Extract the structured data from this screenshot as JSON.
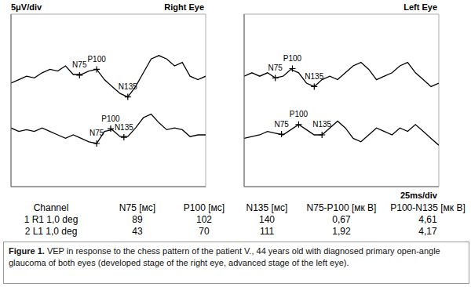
{
  "chart_data": [
    {
      "type": "line",
      "title": "Right Eye",
      "annotation": "5μV/div",
      "x": [
        0,
        10,
        20,
        30,
        40,
        50,
        60,
        70,
        80,
        90,
        100,
        110,
        120,
        130,
        140,
        150,
        160,
        170,
        180,
        190,
        200,
        210,
        220,
        230,
        240,
        250
      ],
      "xlim": [
        0,
        250
      ],
      "xticks": [
        0,
        25,
        50,
        75,
        100,
        125,
        150,
        175,
        200,
        225,
        250
      ],
      "ylim": [
        0,
        50
      ],
      "yticks": [
        0,
        5,
        10,
        15,
        20,
        25,
        30,
        35,
        40,
        45,
        50
      ],
      "grid": true,
      "tick_labels": false,
      "color": "#000000",
      "series": [
        {
          "values": [
            30,
            31,
            32,
            31.5,
            33,
            34,
            33.5,
            35,
            32.5,
            32.5,
            33.5,
            34,
            31,
            29,
            27,
            26,
            29,
            33,
            37,
            38,
            37,
            35,
            36,
            32,
            31,
            32
          ],
          "peaks": [
            {
              "label": "N75",
              "x": 88,
              "y": 32.3
            },
            {
              "label": "P100",
              "x": 110,
              "y": 34
            },
            {
              "label": "N135",
              "x": 150,
              "y": 26
            }
          ]
        },
        {
          "values": [
            17,
            16,
            16.5,
            16,
            17,
            16,
            15,
            14,
            15,
            14,
            13,
            12.5,
            16,
            16.5,
            14.5,
            14.5,
            17,
            20,
            21,
            18.5,
            16.5,
            17,
            16.5,
            14.5,
            15,
            15
          ],
          "peaks": [
            {
              "label": "N75",
              "x": 110,
              "y": 12.5
            },
            {
              "label": "P100",
              "x": 128,
              "y": 16.8
            },
            {
              "label": "N135",
              "x": 145,
              "y": 14.3
            }
          ]
        }
      ]
    },
    {
      "type": "line",
      "title": "Left Eye",
      "annotation": "25ms/div",
      "x": [
        0,
        10,
        20,
        30,
        40,
        50,
        60,
        70,
        80,
        90,
        100,
        110,
        120,
        130,
        140,
        150,
        160,
        170,
        180,
        190,
        200,
        210,
        220,
        230,
        240,
        250
      ],
      "xlim": [
        0,
        250
      ],
      "xticks": [
        0,
        25,
        50,
        75,
        100,
        125,
        150,
        175,
        200,
        225,
        250
      ],
      "ylim": [
        0,
        50
      ],
      "yticks": [
        0,
        5,
        10,
        15,
        20,
        25,
        30,
        35,
        40,
        45,
        50
      ],
      "grid": true,
      "tick_labels": false,
      "color": "#000000",
      "series": [
        {
          "values": [
            32,
            33,
            32,
            33,
            31.5,
            32,
            34,
            33,
            30,
            29,
            31,
            32,
            31,
            33,
            35,
            36,
            34,
            31,
            32,
            33,
            35,
            36,
            33,
            31,
            29,
            30
          ],
          "peaks": [
            {
              "label": "N75",
              "x": 40,
              "y": 31.5
            },
            {
              "label": "P100",
              "x": 62,
              "y": 34.2
            },
            {
              "label": "N135",
              "x": 90,
              "y": 29
            }
          ]
        },
        {
          "values": [
            14,
            14.5,
            15,
            16,
            15.5,
            15,
            16.5,
            18,
            16.5,
            15,
            15,
            17,
            19,
            17,
            14,
            13,
            15,
            17,
            16,
            15,
            17,
            16,
            18,
            16,
            14,
            12
          ],
          "peaks": [
            {
              "label": "N75",
              "x": 48,
              "y": 15.2
            },
            {
              "label": "P100",
              "x": 70,
              "y": 18
            },
            {
              "label": "N135",
              "x": 100,
              "y": 15
            }
          ]
        }
      ]
    }
  ],
  "table": {
    "header": [
      "Channel",
      "N75 [мс]",
      "P100 [мс]",
      "N135 [мс]",
      "N75-P100 [мк В]",
      "P100-N135 [мк В]"
    ],
    "rows": [
      [
        "1 R1 1,0 deg",
        89,
        102,
        140,
        "0,67",
        "4,61"
      ],
      [
        "2 L1 1,0 deg",
        43,
        70,
        111,
        "1,92",
        "4,17"
      ]
    ]
  },
  "caption": {
    "label": "Figure 1.",
    "text": "VEP in response to the chess pattern of the patient V., 44 years old with diagnosed primary open-angle glaucoma of both eyes (developed stage of the right eye, advanced stage of the left eye)."
  }
}
